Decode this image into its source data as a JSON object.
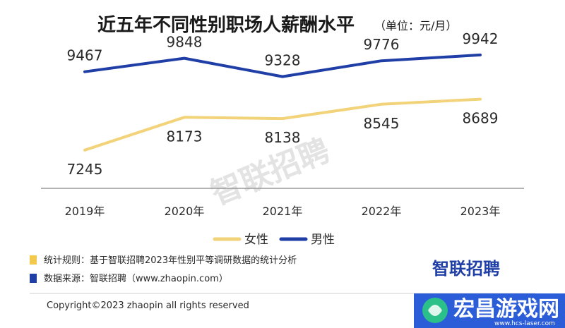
{
  "chart_data": {
    "type": "line",
    "title": "近五年不同性别职场人薪酬水平",
    "unit": "（单位：元/月）",
    "categories": [
      "2019年",
      "2020年",
      "2021年",
      "2022年",
      "2023年"
    ],
    "series": [
      {
        "name": "女性",
        "color": "#f2d37a",
        "values": [
          7245,
          8173,
          8138,
          8545,
          8689
        ]
      },
      {
        "name": "男性",
        "color": "#1f3ea6",
        "values": [
          9467,
          9848,
          9328,
          9776,
          9942
        ]
      }
    ],
    "ylim": [
      6800,
      10300
    ],
    "grid": false,
    "legend": "bottom-center"
  },
  "notes": [
    {
      "marker_color": "#f2c94c",
      "text": "统计规则：基于智联招聘2023年性别平等调研数据的统计分析"
    },
    {
      "marker_color": "#1f3ea6",
      "text": "数据来源：智联招聘（www.zhaopin.com）"
    }
  ],
  "brand": "智联招聘",
  "watermark": "智联招聘",
  "copyright": "Copyright©2023 zhaopin all rights reserved",
  "site_badge": {
    "text": "宏昌游戏网",
    "sub": "www.hcs-laser.com"
  }
}
